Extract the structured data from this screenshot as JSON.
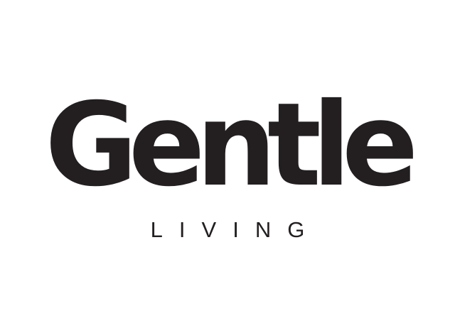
{
  "logo": {
    "wordmark": "Gentle",
    "subline": "LIVING",
    "color": "#231f20",
    "background": "#ffffff"
  }
}
